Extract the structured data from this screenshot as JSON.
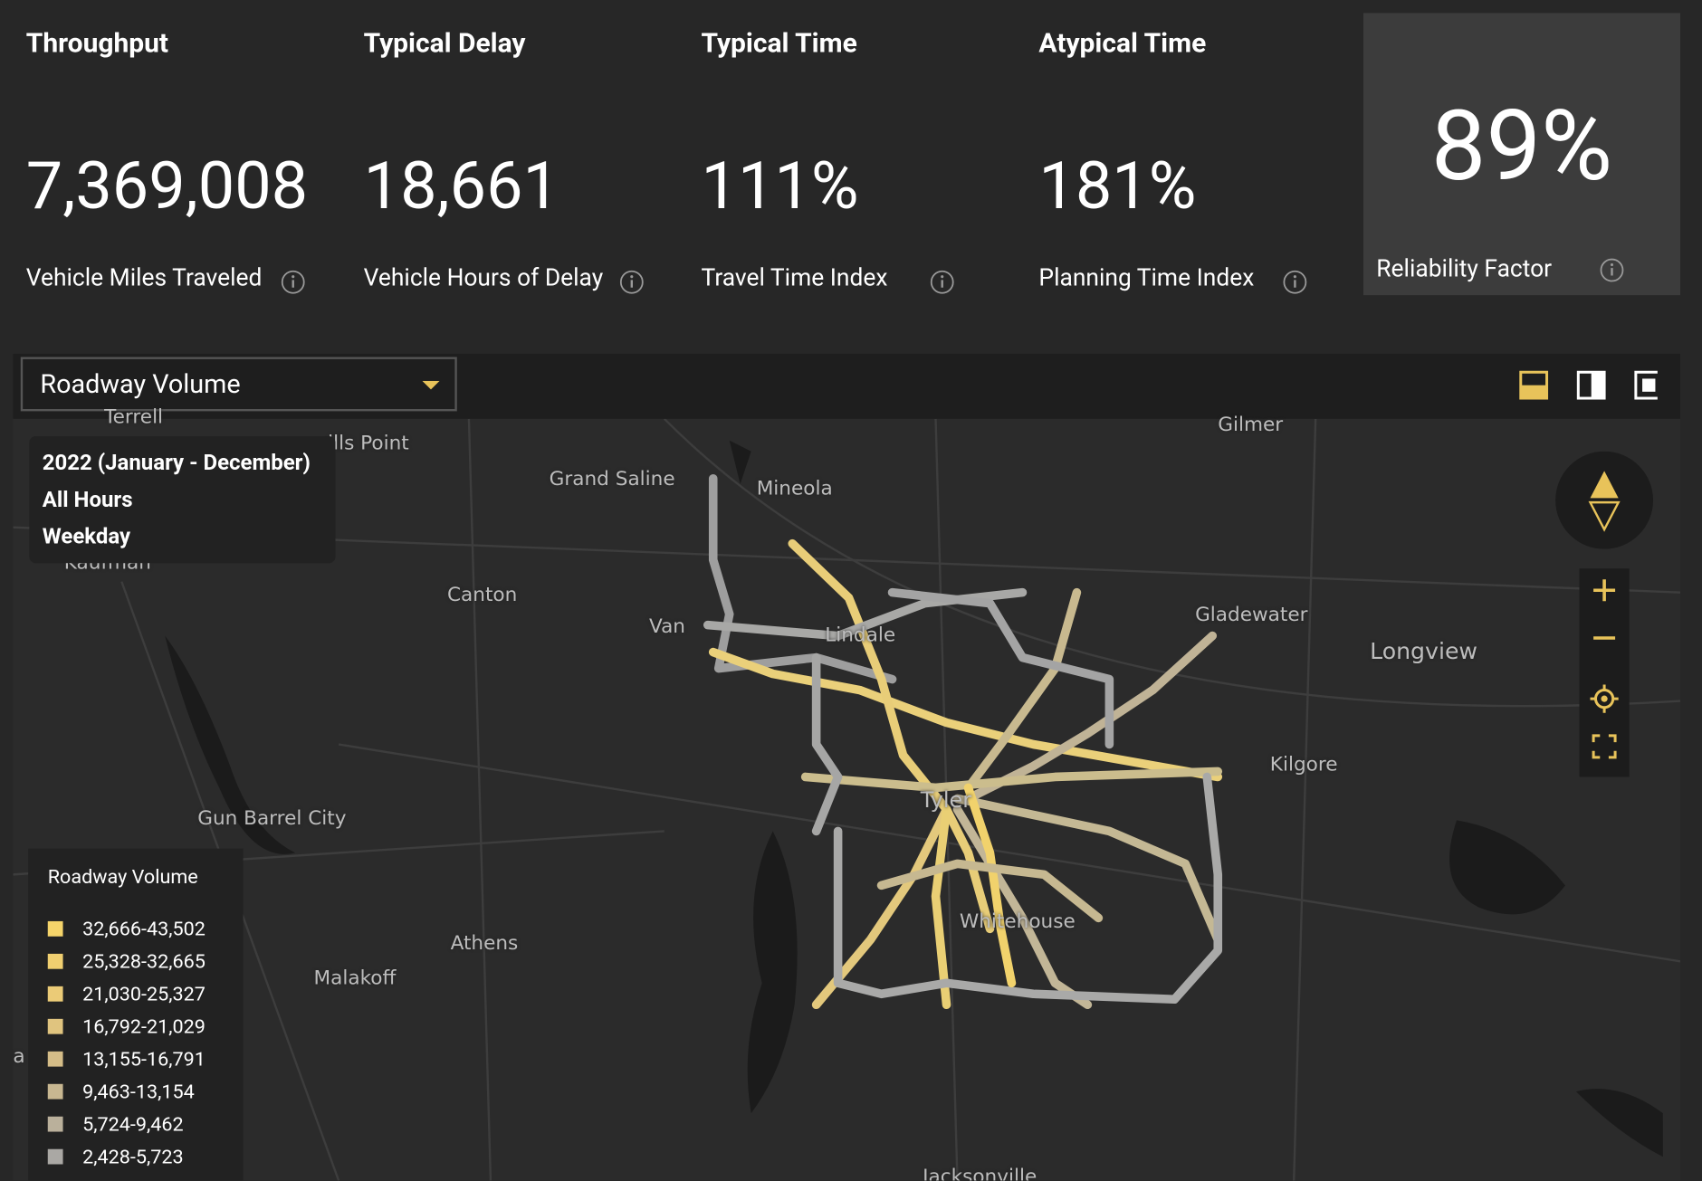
{
  "metrics": [
    {
      "title": "Throughput",
      "value": "7,369,008",
      "label": "Vehicle Miles Traveled"
    },
    {
      "title": "Typical Delay",
      "value": "18,661",
      "label": "Vehicle Hours of Delay"
    },
    {
      "title": "Typical Time",
      "value": "111%",
      "label": "Travel Time Index"
    },
    {
      "title": "Atypical Time",
      "value": "181%",
      "label": "Planning Time Index"
    }
  ],
  "reliability": {
    "value": "89%",
    "label": "Reliability Factor"
  },
  "dropdown": "Roadway Volume",
  "info_box": [
    "2022 (January - December)",
    "All Hours",
    "Weekday"
  ],
  "places": [
    "Terrell",
    "ills Point",
    "Grand Saline",
    "Mineola",
    "Gilmer",
    "Kaufman",
    "Canton",
    "Van",
    "Lindale",
    "Gladewater",
    "Longview",
    "Kilgore",
    "Tyler",
    "Gun Barrel City",
    "Whitehouse",
    "Athens",
    "Malakoff",
    "Jacksonville",
    "a"
  ],
  "legend": {
    "title": "Roadway Volume",
    "items": [
      {
        "label": "32,666-43,502",
        "color": "#f5d46a"
      },
      {
        "label": "25,328-32,665",
        "color": "#f0cf70"
      },
      {
        "label": "21,030-25,327",
        "color": "#ebcb77"
      },
      {
        "label": "16,792-21,029",
        "color": "#e0c47f"
      },
      {
        "label": "13,155-16,791",
        "color": "#d5bd88"
      },
      {
        "label": "9,463-13,154",
        "color": "#c8b791"
      },
      {
        "label": "5,724-9,462",
        "color": "#bab09b"
      },
      {
        "label": "2,428-5,723",
        "color": "#aaa8a4"
      }
    ]
  }
}
